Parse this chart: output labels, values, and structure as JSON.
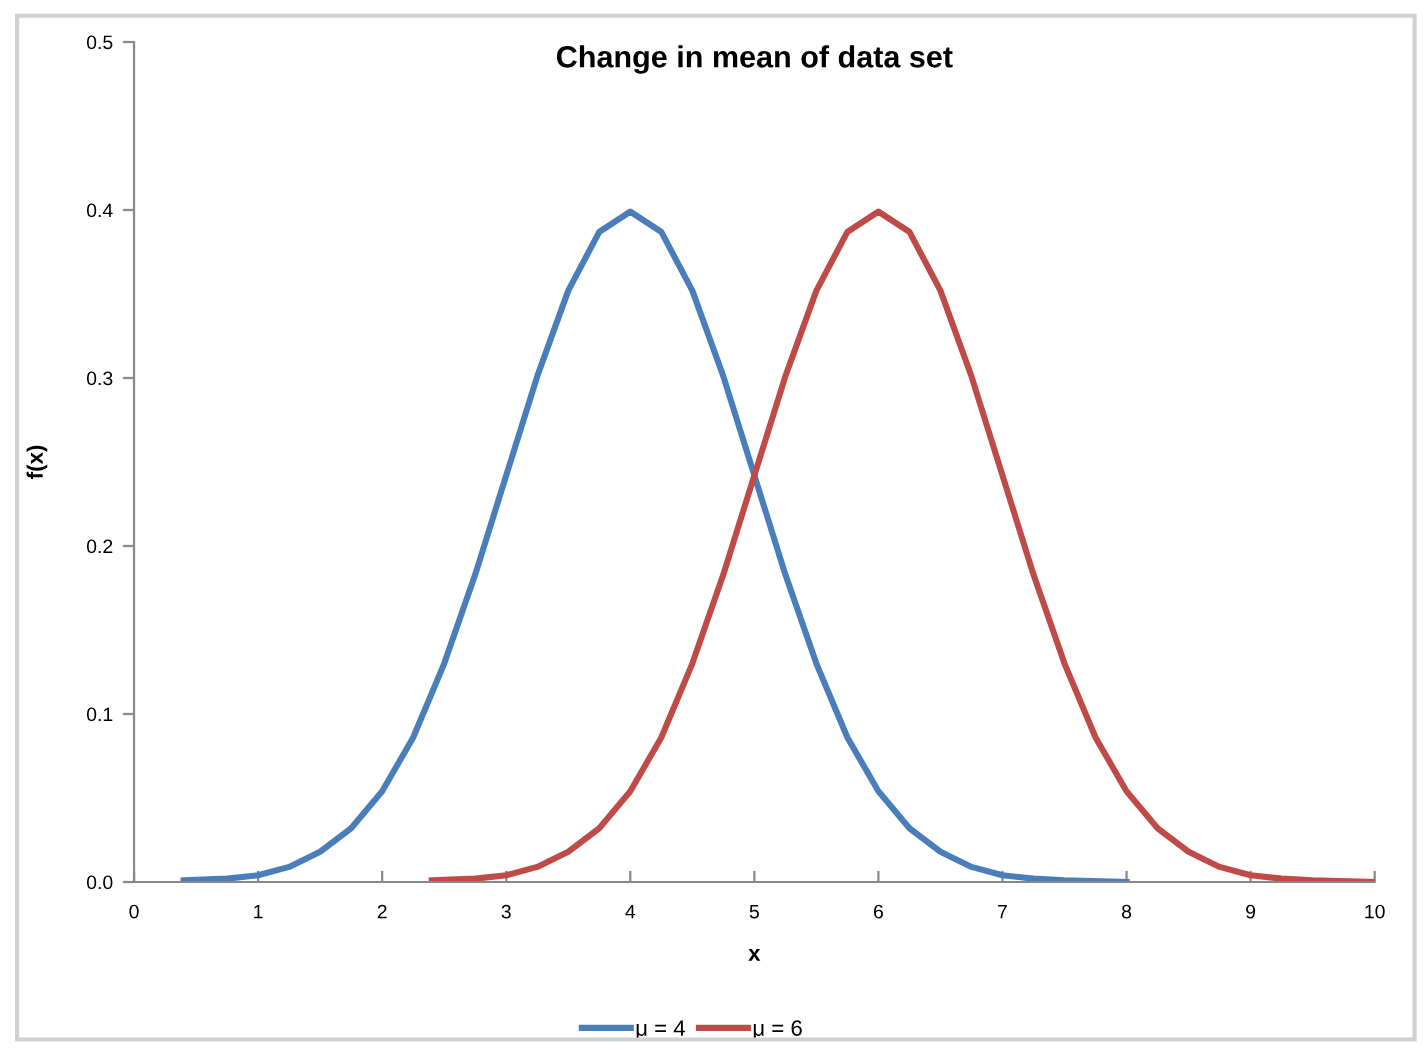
{
  "chart_data": {
    "type": "line",
    "title": "Change in mean of data set",
    "xlabel": "x",
    "ylabel": "f(x)",
    "series": [
      {
        "name": "μ = 4",
        "color": "#4a7ebb",
        "x": [
          0.4,
          0.75,
          1,
          1.25,
          1.5,
          1.75,
          2,
          2.25,
          2.5,
          2.75,
          3,
          3.25,
          3.5,
          3.75,
          4,
          4.25,
          4.5,
          4.75,
          5,
          5.25,
          5.5,
          5.75,
          6,
          6.25,
          6.5,
          6.75,
          7,
          7.25,
          7.5,
          8
        ],
        "values": [
          0.001,
          0.002,
          0.004,
          0.009,
          0.018,
          0.032,
          0.054,
          0.086,
          0.13,
          0.183,
          0.242,
          0.301,
          0.352,
          0.387,
          0.399,
          0.387,
          0.352,
          0.301,
          0.242,
          0.183,
          0.13,
          0.086,
          0.054,
          0.032,
          0.018,
          0.009,
          0.004,
          0.002,
          0.001,
          0.0
        ]
      },
      {
        "name": "μ = 6",
        "color": "#be4b48",
        "x": [
          2.4,
          2.75,
          3,
          3.25,
          3.5,
          3.75,
          4,
          4.25,
          4.5,
          4.75,
          5,
          5.25,
          5.5,
          5.75,
          6,
          6.25,
          6.5,
          6.75,
          7,
          7.25,
          7.5,
          7.75,
          8,
          8.25,
          8.5,
          8.75,
          9,
          9.25,
          9.5,
          10
        ],
        "values": [
          0.001,
          0.002,
          0.004,
          0.009,
          0.018,
          0.032,
          0.054,
          0.086,
          0.13,
          0.183,
          0.242,
          0.301,
          0.352,
          0.387,
          0.399,
          0.387,
          0.352,
          0.301,
          0.242,
          0.183,
          0.13,
          0.086,
          0.054,
          0.032,
          0.018,
          0.009,
          0.004,
          0.002,
          0.001,
          0.0
        ]
      }
    ],
    "xlim": [
      0,
      10
    ],
    "xticks": [
      0,
      1,
      2,
      3,
      4,
      5,
      6,
      7,
      8,
      9,
      10
    ],
    "ylim": [
      0,
      0.5
    ],
    "yticks": [
      {
        "value": 0,
        "label": "0.0"
      },
      {
        "value": 0.1,
        "label": "0.1"
      },
      {
        "value": 0.2,
        "label": "0.2"
      },
      {
        "value": 0.3,
        "label": "0.3"
      },
      {
        "value": 0.4,
        "label": "0.4"
      },
      {
        "value": 0.5,
        "label": "0.5"
      }
    ],
    "grid": false,
    "legend": "bottom",
    "marker": "none",
    "line_style": "solid"
  }
}
